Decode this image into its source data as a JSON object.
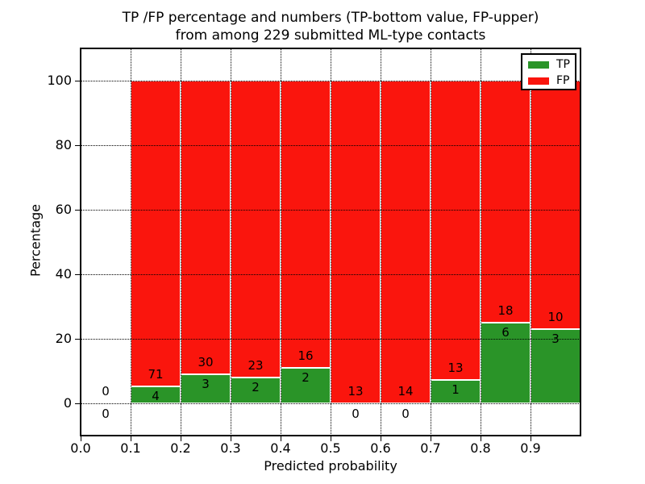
{
  "title": {
    "line1": "TP /FP percentage and numbers (TP-bottom value, FP-upper)",
    "line2": "from among 229 submitted ML-type contacts"
  },
  "chart_data": {
    "type": "bar",
    "stacked": true,
    "title": "TP /FP percentage and numbers (TP-bottom value, FP-upper) from among 229 submitted ML-type contacts",
    "xlabel": "Predicted probability",
    "ylabel": "Percentage",
    "total_contacts": 229,
    "xlim": [
      0.0,
      1.0
    ],
    "ylim": [
      -10,
      110
    ],
    "xticks": [
      "0.0",
      "0.1",
      "0.2",
      "0.3",
      "0.4",
      "0.5",
      "0.6",
      "0.7",
      "0.8",
      "0.9"
    ],
    "yticks": [
      0,
      20,
      40,
      60,
      80,
      100
    ],
    "grid": {
      "style": "dotted",
      "color": "#000000"
    },
    "bin_edges": [
      0.0,
      0.1,
      0.2,
      0.3,
      0.4,
      0.5,
      0.6,
      0.7,
      0.8,
      0.9,
      1.0
    ],
    "series": [
      {
        "name": "TP",
        "color": "#2a9428",
        "counts": [
          0,
          4,
          3,
          2,
          2,
          0,
          0,
          1,
          6,
          3
        ],
        "pct": [
          0,
          5.333,
          9.091,
          8.0,
          11.111,
          0,
          0,
          7.143,
          25.0,
          23.077
        ]
      },
      {
        "name": "FP",
        "color": "#fa150d",
        "counts": [
          0,
          71,
          30,
          23,
          16,
          13,
          14,
          13,
          18,
          10
        ],
        "pct": [
          0,
          94.667,
          90.909,
          92.0,
          88.889,
          100,
          100,
          92.857,
          75.0,
          76.923
        ]
      }
    ],
    "legend": {
      "position": "upper-right",
      "entries": [
        {
          "label": "TP",
          "color": "#2a9428"
        },
        {
          "label": "FP",
          "color": "#fa150d"
        }
      ]
    },
    "annotation_note": "TP-bottom value, FP-upper"
  }
}
